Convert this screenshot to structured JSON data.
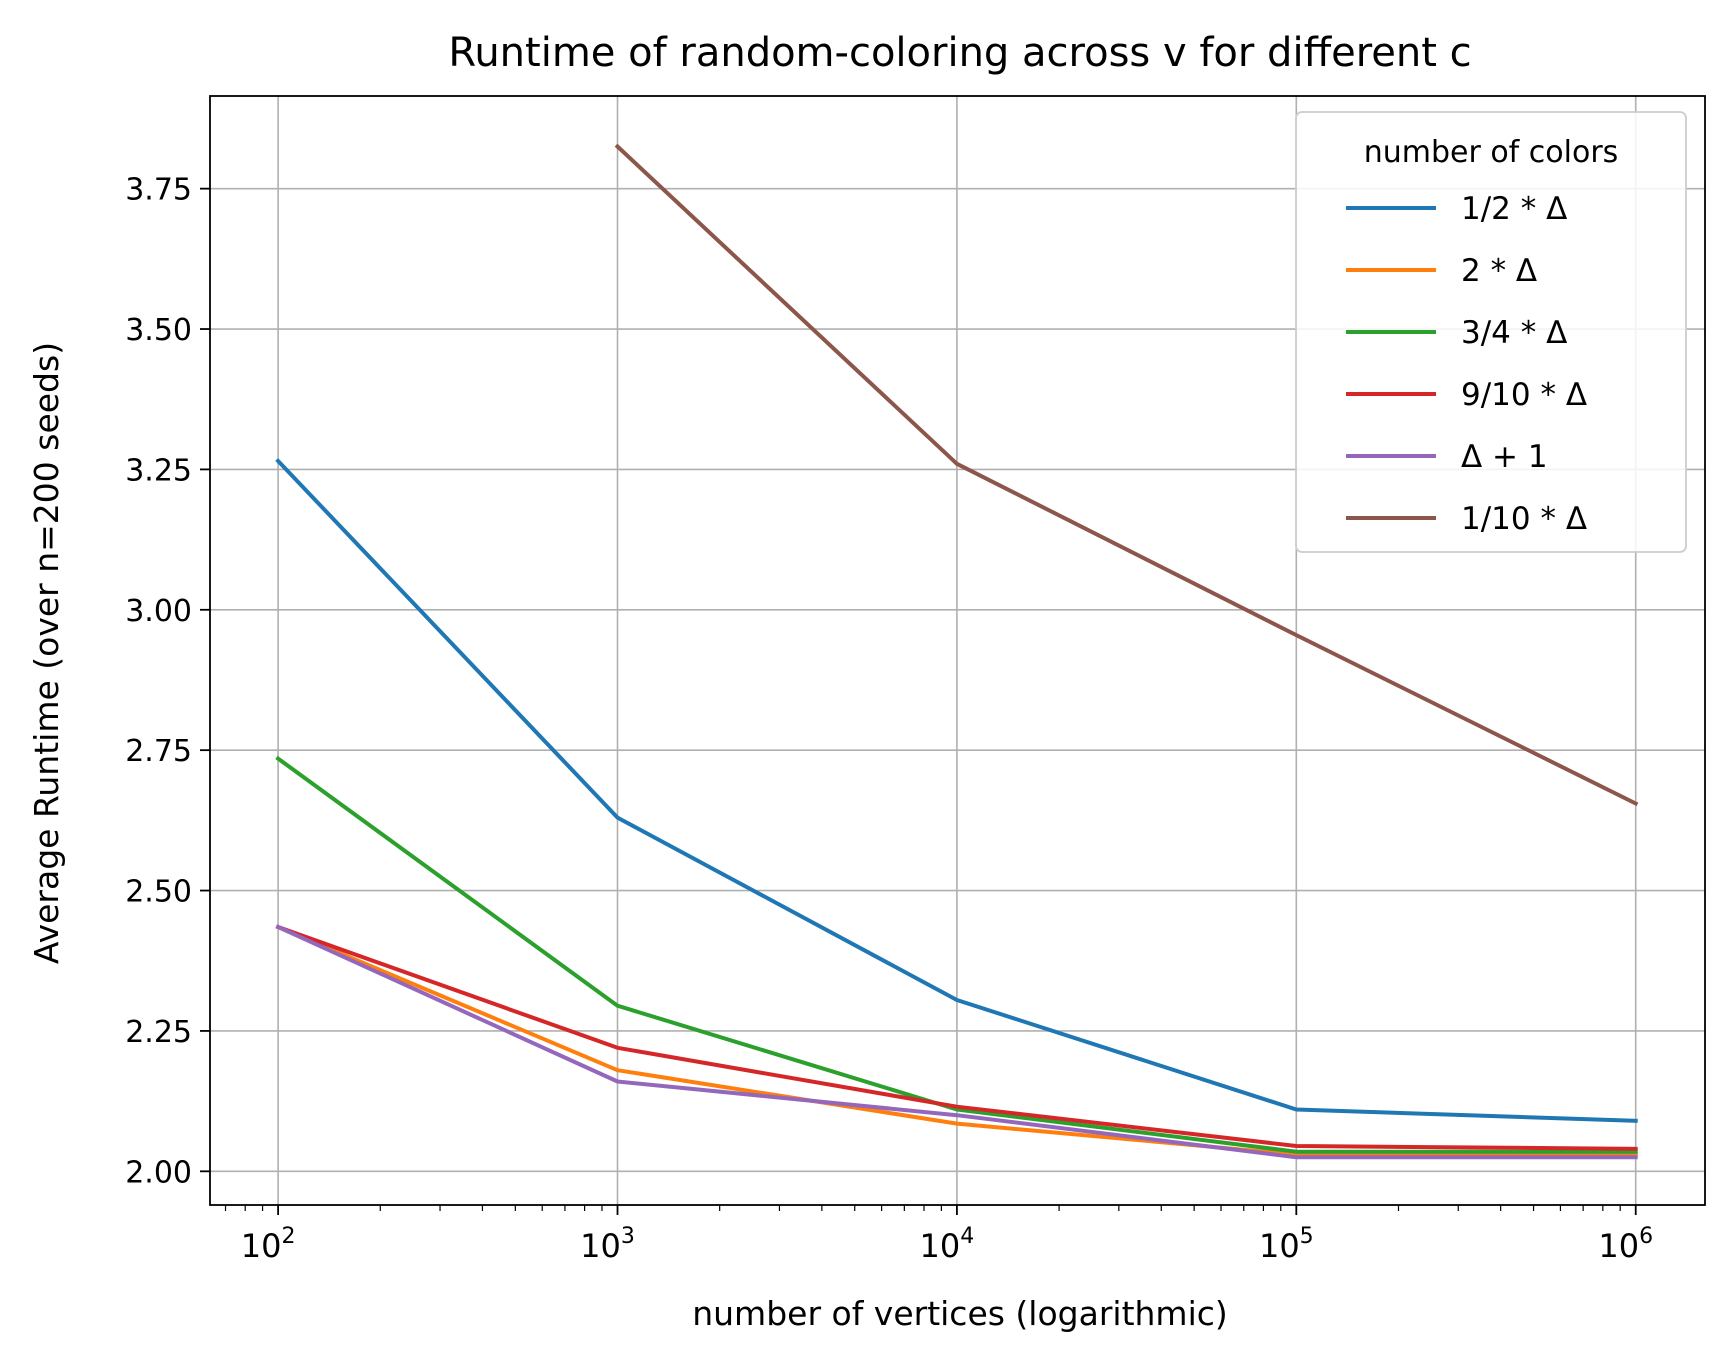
{
  "chart_data": {
    "type": "line",
    "title": "Runtime of random-coloring across v for different c",
    "xlabel": "number of vertices (logarithmic)",
    "ylabel": "Average Runtime (over n=200 seeds)",
    "x_scale": "log",
    "x": [
      100,
      1000,
      10000,
      100000,
      1000000
    ],
    "x_tick_labels": [
      {
        "base": "10",
        "exp": "2"
      },
      {
        "base": "10",
        "exp": "3"
      },
      {
        "base": "10",
        "exp": "4"
      },
      {
        "base": "10",
        "exp": "5"
      },
      {
        "base": "10",
        "exp": "6"
      }
    ],
    "y_ticks": [
      2.0,
      2.25,
      2.5,
      2.75,
      3.0,
      3.25,
      3.5,
      3.75
    ],
    "y_tick_labels": [
      "2.00",
      "2.25",
      "2.50",
      "2.75",
      "3.00",
      "3.25",
      "3.50",
      "3.75"
    ],
    "xlim": [
      63,
      1600000
    ],
    "ylim": [
      1.94,
      3.915
    ],
    "grid": true,
    "legend": {
      "title": "number of colors",
      "placement": "top-right"
    },
    "series": [
      {
        "name": "1/2 * Δ",
        "color": "#1f77b4",
        "values": [
          3.265,
          2.63,
          2.305,
          2.11,
          2.09
        ]
      },
      {
        "name": "2 * Δ",
        "color": "#ff7f0e",
        "values": [
          2.435,
          2.18,
          2.085,
          2.03,
          2.03
        ]
      },
      {
        "name": "3/4 * Δ",
        "color": "#2ca02c",
        "values": [
          2.735,
          2.295,
          2.11,
          2.035,
          2.035
        ]
      },
      {
        "name": "9/10 * Δ",
        "color": "#d62728",
        "values": [
          2.435,
          2.22,
          2.115,
          2.045,
          2.04
        ]
      },
      {
        "name": "Δ + 1",
        "color": "#9467bd",
        "values": [
          2.435,
          2.16,
          2.1,
          2.025,
          2.025
        ]
      },
      {
        "name": "1/10 * Δ",
        "color": "#8c564b",
        "values": [
          null,
          3.825,
          3.26,
          2.955,
          2.655
        ]
      }
    ]
  }
}
